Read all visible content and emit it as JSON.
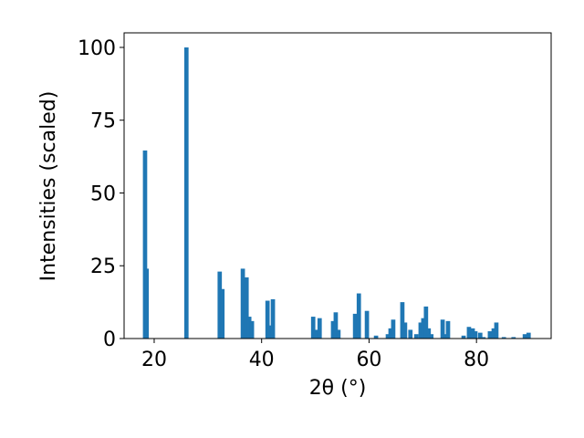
{
  "chart_data": {
    "type": "bar",
    "xlabel": "2θ (°)",
    "ylabel": "Intensities (scaled)",
    "x": [
      18.3,
      18.6,
      26.0,
      32.2,
      32.7,
      36.5,
      37.2,
      37.7,
      38.2,
      41.1,
      41.6,
      42.1,
      49.6,
      50.1,
      50.8,
      53.3,
      53.8,
      54.3,
      57.4,
      58.1,
      59.6,
      61.3,
      63.5,
      64.0,
      64.5,
      66.2,
      66.7,
      67.7,
      68.8,
      69.6,
      70.1,
      70.6,
      71.1,
      71.6,
      73.7,
      74.2,
      74.7,
      77.6,
      78.6,
      79.3,
      79.8,
      80.7,
      81.3,
      82.5,
      83.2,
      83.7,
      85.1,
      86.9,
      89.0,
      89.7
    ],
    "values": [
      64.6,
      24,
      100,
      23,
      17,
      24,
      21,
      7.5,
      6,
      13,
      4.5,
      13.5,
      7.5,
      3,
      7,
      6,
      9,
      3,
      8.5,
      15.5,
      9.5,
      1,
      1.5,
      3.5,
      6.5,
      12.5,
      5.5,
      3,
      1.5,
      5.5,
      7,
      11,
      3.5,
      1.5,
      6.5,
      1.5,
      6,
      1,
      4,
      3.5,
      2.5,
      2,
      0.5,
      2.5,
      3.5,
      5.5,
      0.5,
      0.5,
      1.5,
      2
    ],
    "bar_width": 0.8,
    "color": "#1f77b4",
    "xlim": [
      14.4,
      93.9
    ],
    "xticks": [
      20,
      40,
      60,
      80
    ],
    "ylim": [
      0,
      105
    ],
    "yticks": [
      0,
      25,
      50,
      75,
      100
    ],
    "grid": false
  }
}
